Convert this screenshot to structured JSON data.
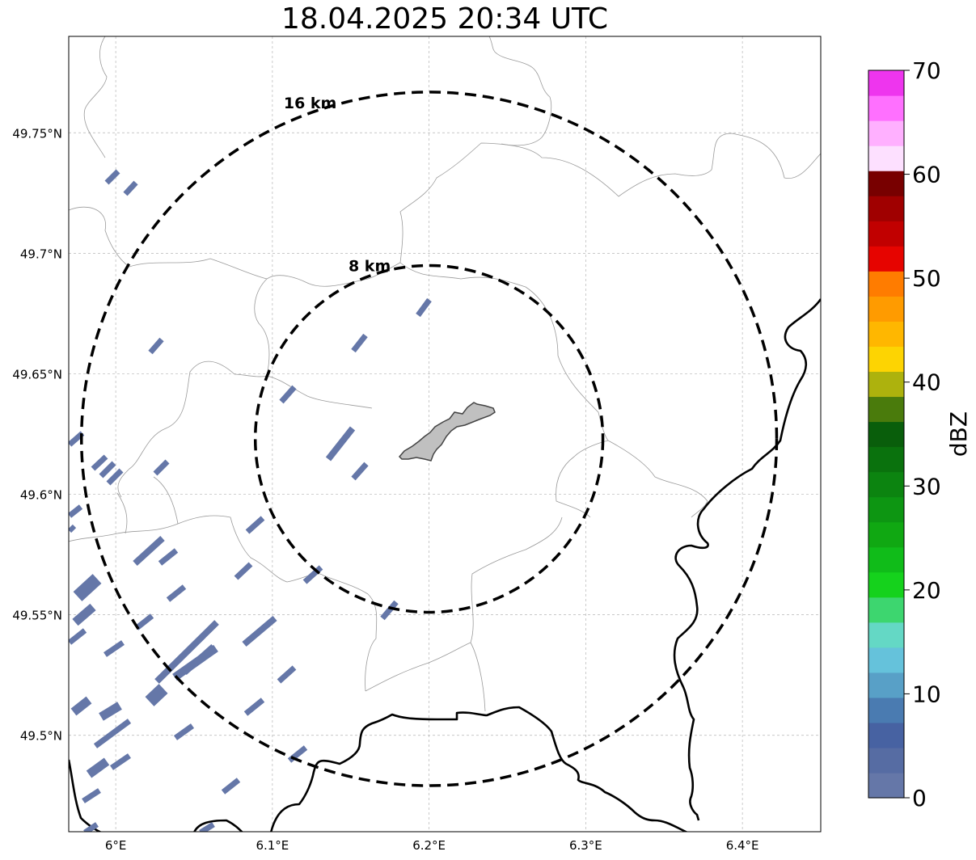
{
  "title": "18.04.2025 20:34 UTC",
  "map": {
    "lon_range": [
      5.97,
      6.45
    ],
    "lat_range": [
      49.46,
      49.79
    ],
    "x_ticks": [
      {
        "value": 6.0,
        "label": "6°E"
      },
      {
        "value": 6.1,
        "label": "6.1°E"
      },
      {
        "value": 6.2,
        "label": "6.2°E"
      },
      {
        "value": 6.3,
        "label": "6.3°E"
      },
      {
        "value": 6.4,
        "label": "6.4°E"
      }
    ],
    "y_ticks": [
      {
        "value": 49.5,
        "label": "49.5°N"
      },
      {
        "value": 49.55,
        "label": "49.55°N"
      },
      {
        "value": 49.6,
        "label": "49.6°N"
      },
      {
        "value": 49.65,
        "label": "49.65°N"
      },
      {
        "value": 49.7,
        "label": "49.7°N"
      },
      {
        "value": 49.75,
        "label": "49.75°N"
      }
    ],
    "grid": true,
    "center": {
      "lon": 6.2,
      "lat": 49.623
    },
    "range_rings": [
      {
        "radius_km": 16,
        "label": "16 km"
      },
      {
        "radius_km": 8,
        "label": "8 km"
      }
    ],
    "echo_color": "#6577a8",
    "city_fill": "#c0c0c0"
  },
  "colorbar": {
    "label": "dBZ",
    "min": 0,
    "max": 70,
    "ticks": [
      {
        "value": 0,
        "label": "0"
      },
      {
        "value": 10,
        "label": "10"
      },
      {
        "value": 20,
        "label": "20"
      },
      {
        "value": 30,
        "label": "30"
      },
      {
        "value": 40,
        "label": "40"
      },
      {
        "value": 50,
        "label": "50"
      },
      {
        "value": 60,
        "label": "60"
      },
      {
        "value": 70,
        "label": "70"
      }
    ],
    "colors": [
      "#6577a8",
      "#566ca3",
      "#4762a2",
      "#4a7bb1",
      "#58a0c7",
      "#65c2db",
      "#64d8c5",
      "#3dd66f",
      "#15d21c",
      "#10bc19",
      "#10a812",
      "#0d9612",
      "#0c8410",
      "#0a720d",
      "#095e0b",
      "#4a7b0c",
      "#adb20d",
      "#fdd402",
      "#ffb700",
      "#ff9b00",
      "#ff7c00",
      "#e60400",
      "#c10000",
      "#a00000",
      "#780000",
      "#fde0ff",
      "#ffb0ff",
      "#ff70ff",
      "#ee35ee"
    ]
  }
}
